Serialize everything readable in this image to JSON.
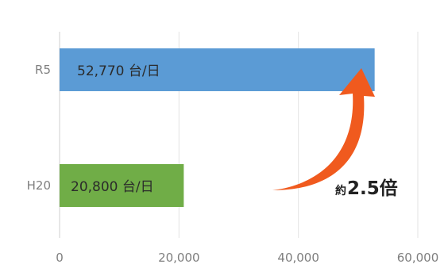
{
  "chart_data": {
    "type": "bar",
    "orientation": "horizontal",
    "categories": [
      "R5",
      "H20"
    ],
    "values": [
      52770,
      20800
    ],
    "data_labels": [
      "52,770 台/日",
      "20,800 台/日"
    ],
    "bar_colors": [
      "#5b9bd5",
      "#70ad47"
    ],
    "xlim": [
      0,
      60000
    ],
    "x_ticks": [
      "0",
      "20,000",
      "40,000",
      "60,000"
    ],
    "grid": true,
    "annotation": {
      "prefix": "約",
      "value": "2.5倍",
      "arrow_color": "#f05a1e"
    }
  }
}
